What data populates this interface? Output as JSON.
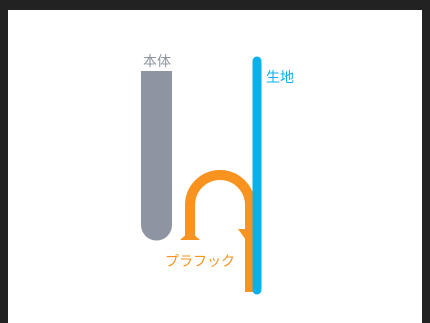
{
  "diagram": {
    "labels": {
      "body": "本体",
      "fabric": "生地",
      "hook": "プラフック"
    },
    "colors": {
      "body": "#8e94a1",
      "fabric": "#0ab0ea",
      "hook": "#f7931e",
      "frame": "#222222",
      "background": "#ffffff"
    }
  }
}
